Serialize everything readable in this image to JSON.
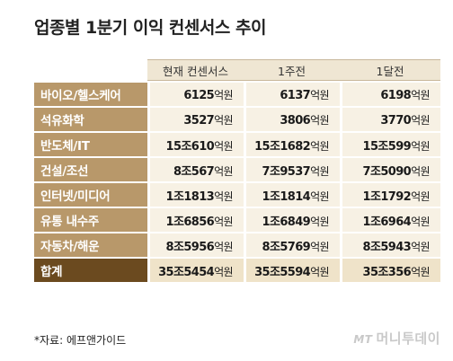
{
  "title": "업종별 1분기 이익 컨센서스 추이",
  "columns": [
    "현재 컨센서스",
    "1주전",
    "1달전"
  ],
  "rows": [
    {
      "category": "바이오/헬스케어",
      "values": [
        {
          "num": "6125",
          "unit": "억원"
        },
        {
          "num": "6137",
          "unit": "억원"
        },
        {
          "num": "6198",
          "unit": "억원"
        }
      ]
    },
    {
      "category": "석유화학",
      "values": [
        {
          "num": "3527",
          "unit": "억원"
        },
        {
          "num": "3806",
          "unit": "억원"
        },
        {
          "num": "3770",
          "unit": "억원"
        }
      ]
    },
    {
      "category": "반도체/IT",
      "values": [
        {
          "num": "15조610",
          "unit": "억원"
        },
        {
          "num": "15조1682",
          "unit": "억원"
        },
        {
          "num": "15조599",
          "unit": "억원"
        }
      ]
    },
    {
      "category": "건설/조선",
      "values": [
        {
          "num": "8조567",
          "unit": "억원"
        },
        {
          "num": "7조9537",
          "unit": "억원"
        },
        {
          "num": "7조5090",
          "unit": "억원"
        }
      ]
    },
    {
      "category": "인터넷/미디어",
      "values": [
        {
          "num": "1조1813",
          "unit": "억원"
        },
        {
          "num": "1조1814",
          "unit": "억원"
        },
        {
          "num": "1조1792",
          "unit": "억원"
        }
      ]
    },
    {
      "category": "유통 내수주",
      "values": [
        {
          "num": "1조6856",
          "unit": "억원"
        },
        {
          "num": "1조6849",
          "unit": "억원"
        },
        {
          "num": "1조6964",
          "unit": "억원"
        }
      ]
    },
    {
      "category": "자동차/해운",
      "values": [
        {
          "num": "8조5956",
          "unit": "억원"
        },
        {
          "num": "8조5769",
          "unit": "억원"
        },
        {
          "num": "8조5943",
          "unit": "억원"
        }
      ]
    }
  ],
  "total": {
    "category": "합계",
    "values": [
      {
        "num": "35조5454",
        "unit": "억원"
      },
      {
        "num": "35조5594",
        "unit": "억원"
      },
      {
        "num": "35조356",
        "unit": "억원"
      }
    ]
  },
  "source": "*자료: 에프앤가이드",
  "watermark": {
    "prefix": "MT",
    "name": "머니투데이"
  }
}
